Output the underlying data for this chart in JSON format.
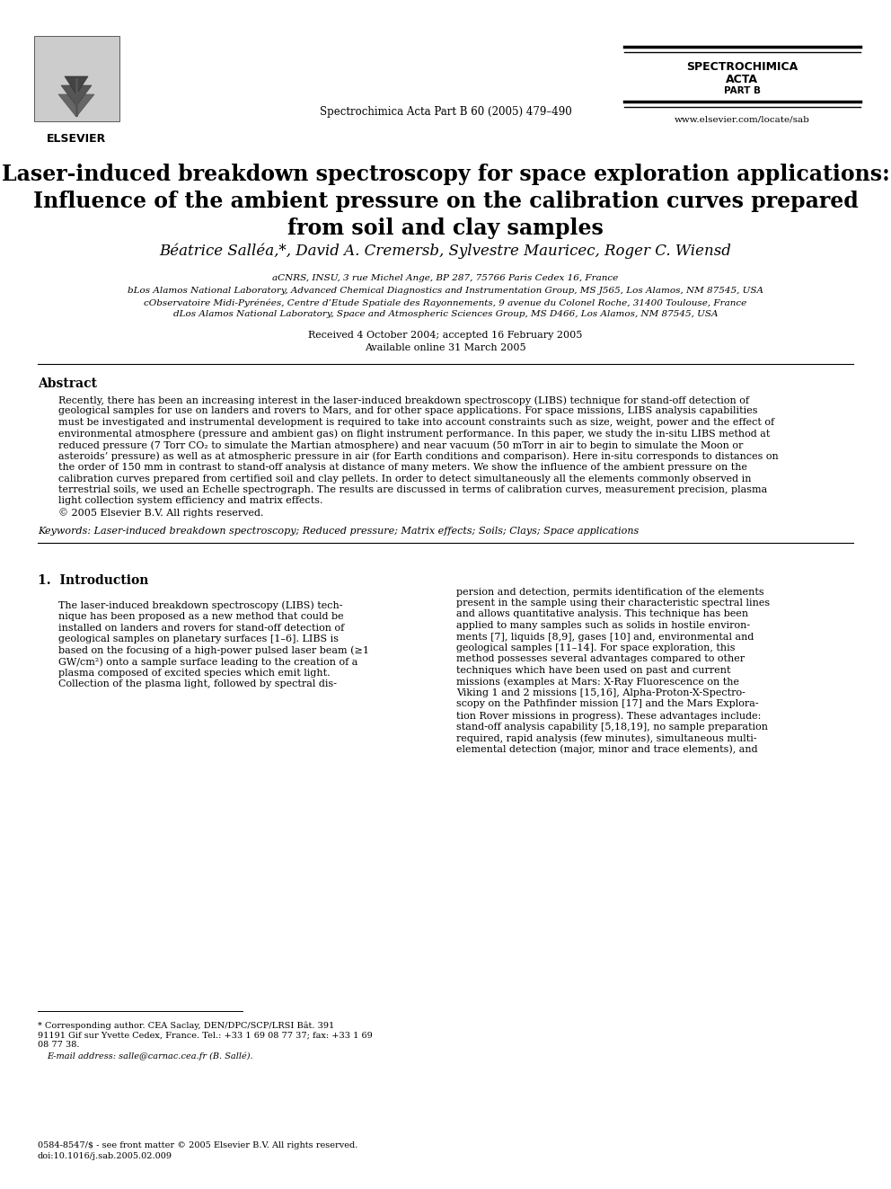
{
  "bg_color": "#ffffff",
  "header": {
    "journal_center": "Spectrochimica Acta Part B 60 (2005) 479–490",
    "journal_right_line1": "SPECTROCHIMICA",
    "journal_right_line2": "ACTA",
    "journal_right_line3": "PART B",
    "journal_right_url": "www.elsevier.com/locate/sab"
  },
  "title_lines": [
    "Laser-induced breakdown spectroscopy for space exploration applications:",
    "Influence of the ambient pressure on the calibration curves prepared",
    "from soil and clay samples"
  ],
  "authors": "Béatrice Salléa,*, David A. Cremersb, Sylvestre Mauricec, Roger C. Wiensd",
  "affiliations": [
    "aCNRS, INSU, 3 rue Michel Ange, BP 287, 75766 Paris Cedex 16, France",
    "bLos Alamos National Laboratory, Advanced Chemical Diagnostics and Instrumentation Group, MS J565, Los Alamos, NM 87545, USA",
    "cObservatoire Midi-Pyrénées, Centre d’Etude Spatiale des Rayonnements, 9 avenue du Colonel Roche, 31400 Toulouse, France",
    "dLos Alamos National Laboratory, Space and Atmospheric Sciences Group, MS D466, Los Alamos, NM 87545, USA"
  ],
  "received": "Received 4 October 2004; accepted 16 February 2005",
  "available": "Available online 31 March 2005",
  "abstract_title": "Abstract",
  "abstract_lines": [
    "Recently, there has been an increasing interest in the laser-induced breakdown spectroscopy (LIBS) technique for stand-off detection of",
    "geological samples for use on landers and rovers to Mars, and for other space applications. For space missions, LIBS analysis capabilities",
    "must be investigated and instrumental development is required to take into account constraints such as size, weight, power and the effect of",
    "environmental atmosphere (pressure and ambient gas) on flight instrument performance. In this paper, we study the in-situ LIBS method at",
    "reduced pressure (7 Torr CO₂ to simulate the Martian atmosphere) and near vacuum (50 mTorr in air to begin to simulate the Moon or",
    "asteroids’ pressure) as well as at atmospheric pressure in air (for Earth conditions and comparison). Here in-situ corresponds to distances on",
    "the order of 150 mm in contrast to stand-off analysis at distance of many meters. We show the influence of the ambient pressure on the",
    "calibration curves prepared from certified soil and clay pellets. In order to detect simultaneously all the elements commonly observed in",
    "terrestrial soils, we used an Echelle spectrograph. The results are discussed in terms of calibration curves, measurement precision, plasma",
    "light collection system efficiency and matrix effects.",
    "© 2005 Elsevier B.V. All rights reserved."
  ],
  "keywords": "Keywords: Laser-induced breakdown spectroscopy; Reduced pressure; Matrix effects; Soils; Clays; Space applications",
  "section1_title": "1.  Introduction",
  "left_col_lines": [
    "The laser-induced breakdown spectroscopy (LIBS) tech-",
    "nique has been proposed as a new method that could be",
    "installed on landers and rovers for stand-off detection of",
    "geological samples on planetary surfaces [1–6]. LIBS is",
    "based on the focusing of a high-power pulsed laser beam (≥1",
    "GW/cm²) onto a sample surface leading to the creation of a",
    "plasma composed of excited species which emit light.",
    "Collection of the plasma light, followed by spectral dis-"
  ],
  "right_col_lines": [
    "persion and detection, permits identification of the elements",
    "present in the sample using their characteristic spectral lines",
    "and allows quantitative analysis. This technique has been",
    "applied to many samples such as solids in hostile environ-",
    "ments [7], liquids [8,9], gases [10] and, environmental and",
    "geological samples [11–14]. For space exploration, this",
    "method possesses several advantages compared to other",
    "techniques which have been used on past and current",
    "missions (examples at Mars: X-Ray Fluorescence on the",
    "Viking 1 and 2 missions [15,16], Alpha-Proton-X-Spectro-",
    "scopy on the Pathfinder mission [17] and the Mars Explora-",
    "tion Rover missions in progress). These advantages include:",
    "stand-off analysis capability [5,18,19], no sample preparation",
    "required, rapid analysis (few minutes), simultaneous multi-",
    "elemental detection (major, minor and trace elements), and"
  ],
  "footnote_lines": [
    "* Corresponding author. CEA Saclay, DEN/DPC/SCP/LRSI Bât. 391",
    "91191 Gif sur Yvette Cedex, France. Tel.: +33 1 69 08 77 37; fax: +33 1 69",
    "08 77 38."
  ],
  "footnote_email": "E-mail address: salle@carnac.cea.fr (B. Sallé).",
  "footnote_bottom_lines": [
    "0584-8547/$ - see front matter © 2005 Elsevier B.V. All rights reserved.",
    "doi:10.1016/j.sab.2005.02.009"
  ]
}
